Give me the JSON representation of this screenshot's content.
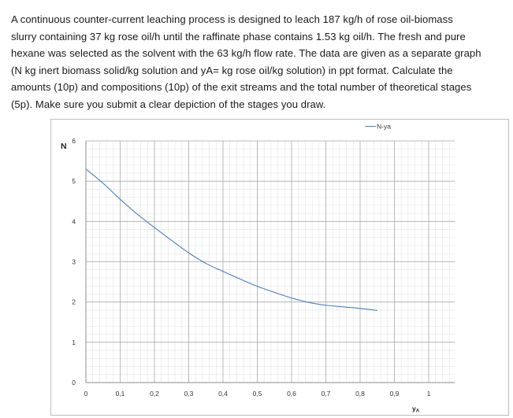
{
  "problem": {
    "lines": [
      "A continuous counter-current leaching process is designed to leach 187 kg/h of rose oil-biomass",
      "slurry containing 37 kg rose oil/h until the raffinate phase contains 1.53 kg oil/h. The fresh and pure",
      "hexane was selected as the solvent with the 63 kg/h flow rate. The data are given as a separate graph",
      "(N kg inert biomass solid/kg solution and yA= kg rose oil/kg solution) in ppt format. Calculate the",
      "amounts (10p) and compositions (10p) of the exit streams and the total number of theoretical stages",
      "(5p). Make sure you submit a clear depiction of the stages you draw."
    ]
  },
  "chart_data": {
    "type": "line",
    "xlabel": "yA",
    "ylabel": "N",
    "xlim": [
      0,
      1
    ],
    "ylim": [
      0,
      6
    ],
    "x_ticks": [
      "0",
      "0,1",
      "0,2",
      "0,3",
      "0,4",
      "0,5",
      "0,6",
      "0,7",
      "0,8",
      "0,9",
      "1"
    ],
    "y_ticks": [
      "0",
      "1",
      "2",
      "3",
      "4",
      "5",
      "6"
    ],
    "grid": true,
    "legend_position": "top-right",
    "series": [
      {
        "name": "N-ya",
        "color": "#4a7ebb",
        "x": [
          0,
          0.05,
          0.1,
          0.15,
          0.2,
          0.25,
          0.3,
          0.35,
          0.4,
          0.45,
          0.5,
          0.55,
          0.6,
          0.65,
          0.7,
          0.75,
          0.8,
          0.85
        ],
        "y": [
          5.3,
          4.95,
          4.55,
          4.18,
          3.85,
          3.53,
          3.22,
          2.96,
          2.76,
          2.57,
          2.39,
          2.24,
          2.1,
          1.99,
          1.92,
          1.88,
          1.84,
          1.79
        ]
      }
    ]
  }
}
